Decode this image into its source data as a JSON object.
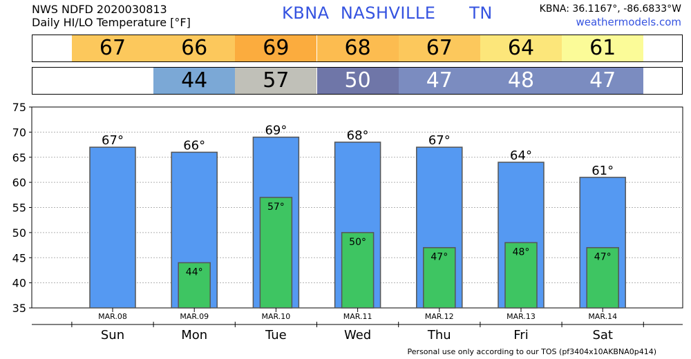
{
  "header": {
    "line1": "NWS NDFD 2020030813",
    "line2": "Daily HI/LO Temperature [°F]",
    "station_title": "KBNA  NASHVILLE      TN",
    "coords": "KBNA: 36.1167°, -86.6833°W",
    "site": "weathermodels.com"
  },
  "footer": "Personal use only according to our TOS (pf3404x10AKBNA0p414)",
  "hi_strip": [
    {
      "value": "67",
      "color": "#fcc85c"
    },
    {
      "value": "66",
      "color": "#fcc85c"
    },
    {
      "value": "69",
      "color": "#fbac3e"
    },
    {
      "value": "68",
      "color": "#fcbc50"
    },
    {
      "value": "67",
      "color": "#fcc85c"
    },
    {
      "value": "64",
      "color": "#fce67a"
    },
    {
      "value": "61",
      "color": "#fbfb98"
    }
  ],
  "lo_strip": [
    {
      "value": "",
      "color": "#ffffff"
    },
    {
      "value": "44",
      "color": "#7ba8d6"
    },
    {
      "value": "57",
      "color": "#c0c0b8"
    },
    {
      "value": "50",
      "color": "#6f76a8"
    },
    {
      "value": "47",
      "color": "#7b8cc0"
    },
    {
      "value": "48",
      "color": "#7b8cc0"
    },
    {
      "value": "47",
      "color": "#7b8cc0"
    }
  ],
  "chart_data": {
    "type": "bar",
    "categories": [
      "MAR.08",
      "MAR.09",
      "MAR.10",
      "MAR.11",
      "MAR.12",
      "MAR.13",
      "MAR.14"
    ],
    "days": [
      "Sun",
      "Mon",
      "Tue",
      "Wed",
      "Thu",
      "Fri",
      "Sat"
    ],
    "series": [
      {
        "values": [
          67,
          66,
          69,
          68,
          67,
          64,
          61
        ],
        "color": "#5599f2"
      },
      {
        "values": [
          null,
          44,
          57,
          50,
          47,
          48,
          47
        ],
        "color": "#3ec562"
      }
    ],
    "hi_labels": [
      "67°",
      "66°",
      "69°",
      "68°",
      "67°",
      "64°",
      "61°"
    ],
    "lo_labels": [
      "",
      "44°",
      "57°",
      "50°",
      "47°",
      "48°",
      "47°"
    ],
    "ylim": [
      35,
      75
    ],
    "yticks": [
      35,
      40,
      45,
      50,
      55,
      60,
      65,
      70,
      75
    ],
    "grid": true
  }
}
